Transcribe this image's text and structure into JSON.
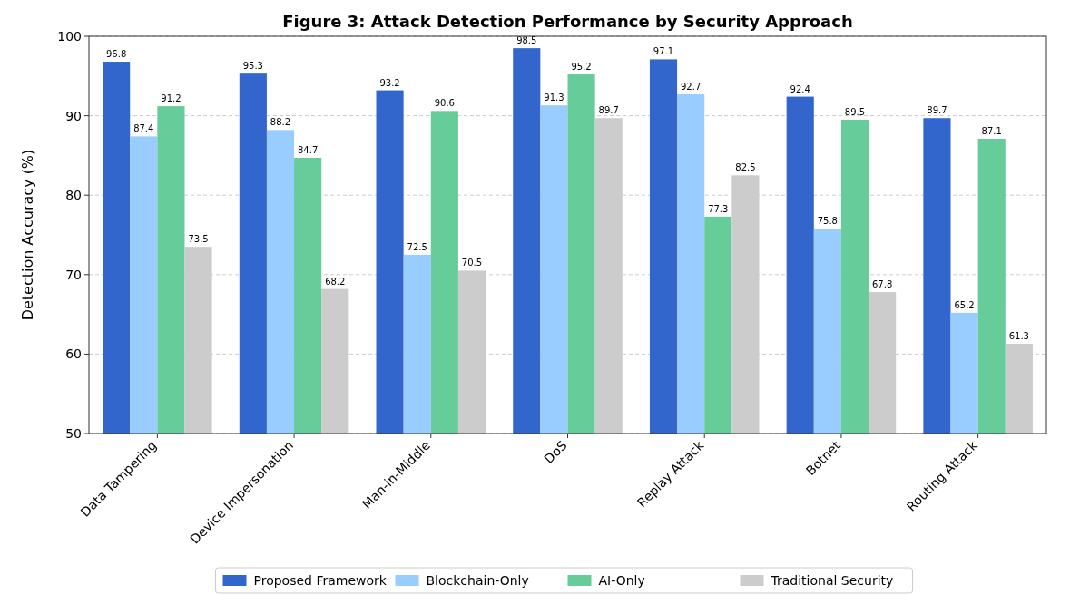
{
  "chart_data": {
    "type": "bar",
    "title": "Figure 3: Attack Detection Performance by Security Approach",
    "ylabel": "Detection Accuracy (%)",
    "categories": [
      "Data Tampering",
      "Device Impersonation",
      "Man-in-Middle",
      "DoS",
      "Replay Attack",
      "Botnet",
      "Routing Attack"
    ],
    "series": [
      {
        "name": "Proposed Framework",
        "color": "#3366cc",
        "values": [
          96.8,
          95.3,
          93.2,
          98.5,
          97.1,
          92.4,
          89.7
        ]
      },
      {
        "name": "Blockchain-Only",
        "color": "#99ccff",
        "values": [
          87.4,
          88.2,
          72.5,
          91.3,
          92.7,
          75.8,
          65.2
        ]
      },
      {
        "name": "AI-Only",
        "color": "#66cc99",
        "values": [
          91.2,
          84.7,
          90.6,
          95.2,
          77.3,
          89.5,
          87.1
        ]
      },
      {
        "name": "Traditional Security",
        "color": "#cccccc",
        "values": [
          73.5,
          68.2,
          70.5,
          89.7,
          82.5,
          67.8,
          61.3
        ]
      }
    ],
    "ylim": [
      50,
      100
    ],
    "yticks": [
      50,
      60,
      70,
      80,
      90,
      100
    ],
    "grid": "y",
    "legend": "bottom",
    "data_labels": true
  }
}
